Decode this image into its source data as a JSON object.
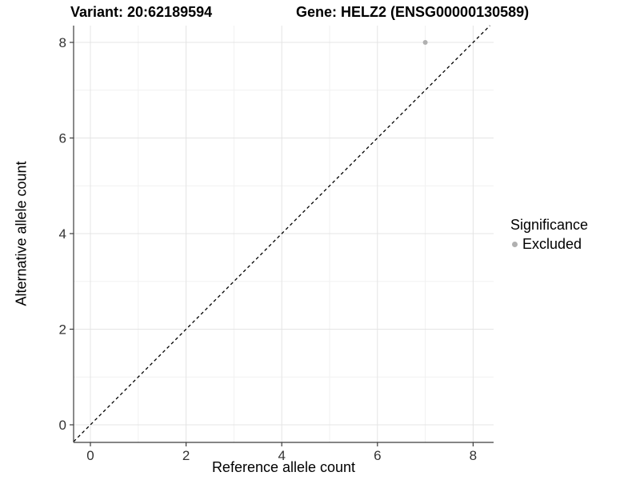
{
  "chart_data": {
    "type": "scatter",
    "title_left": "Variant: 20:62189594",
    "title_right": "Gene: HELZ2 (ENSG00000130589)",
    "xlabel": "Reference allele count",
    "ylabel": "Alternative allele count",
    "xlim": [
      -0.35,
      8.43
    ],
    "ylim": [
      -0.37,
      8.36
    ],
    "x_ticks": [
      0,
      2,
      4,
      6,
      8
    ],
    "y_ticks": [
      0,
      2,
      4,
      6,
      8
    ],
    "x_minor_ticks": [
      1,
      3,
      5,
      7
    ],
    "y_minor_ticks": [
      1,
      3,
      5,
      7
    ],
    "grid": "on",
    "series": [
      {
        "name": "Excluded",
        "color": "#b0b0b0",
        "points": [
          {
            "x": 7,
            "y": 8
          }
        ]
      }
    ],
    "reference_line": {
      "kind": "y=x",
      "style": "dashed",
      "color": "#000000"
    },
    "legend": {
      "title": "Significance",
      "position": "right",
      "items": [
        {
          "label": "Excluded",
          "color": "#b0b0b0"
        }
      ]
    },
    "colors": {
      "background": "#ffffff",
      "grid_major": "#e4e4e4",
      "grid_minor": "#f1f1f1",
      "axis_line": "#3c3c3c",
      "tick_text": "#333333",
      "title_text": "#000000"
    }
  }
}
